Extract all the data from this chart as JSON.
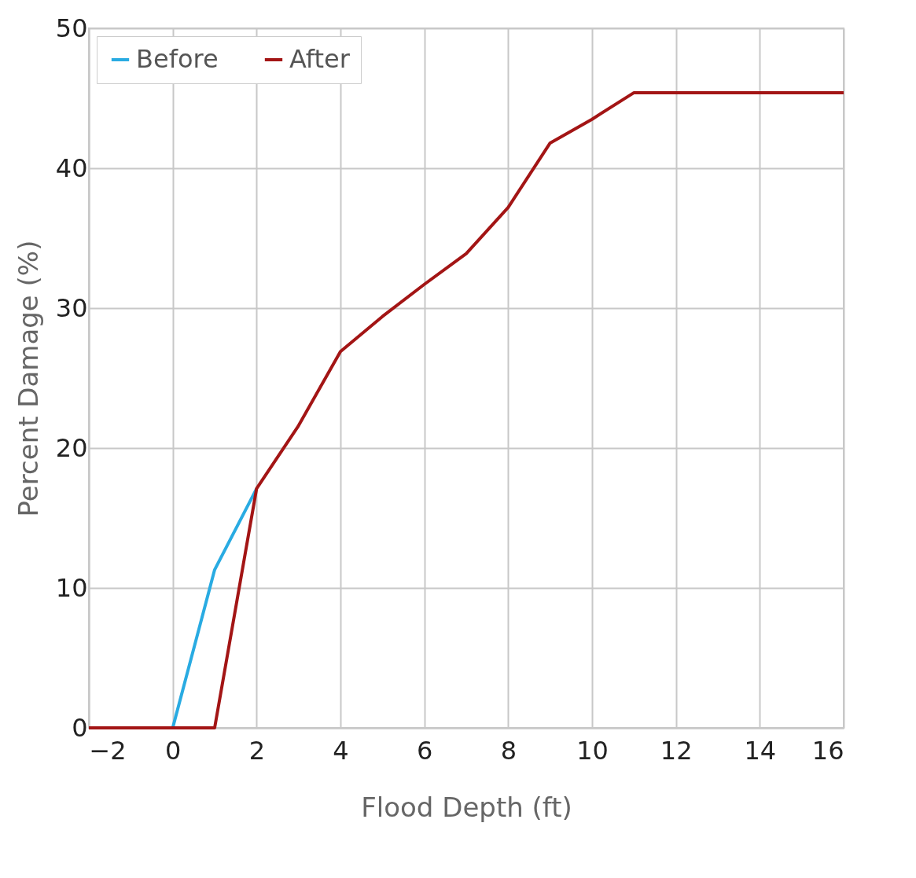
{
  "chart_data": {
    "type": "line",
    "xlabel": "Flood Depth (ft)",
    "ylabel": "Percent Damage (%)",
    "series": [
      {
        "name": "Before",
        "color": "#29abe2",
        "x": [
          0,
          1,
          2
        ],
        "values": [
          0,
          11.3,
          17.1
        ]
      },
      {
        "name": "After",
        "color": "#a31515",
        "x": [
          -2,
          1,
          2,
          3,
          4,
          5,
          6,
          7,
          8,
          9,
          10,
          11,
          16
        ],
        "values": [
          0,
          0,
          17.1,
          21.6,
          26.9,
          29.4,
          31.7,
          33.9,
          37.2,
          41.8,
          43.5,
          45.4,
          45.4
        ]
      }
    ],
    "xlim": [
      -2,
      16
    ],
    "xticks": [
      -2,
      0,
      2,
      4,
      6,
      8,
      10,
      12,
      14,
      16
    ],
    "ylim": [
      0,
      50
    ],
    "yticks": [
      0,
      10,
      20,
      30,
      40,
      50
    ],
    "grid": true,
    "legend": "top left",
    "marker": "none",
    "line_style": "solid"
  }
}
